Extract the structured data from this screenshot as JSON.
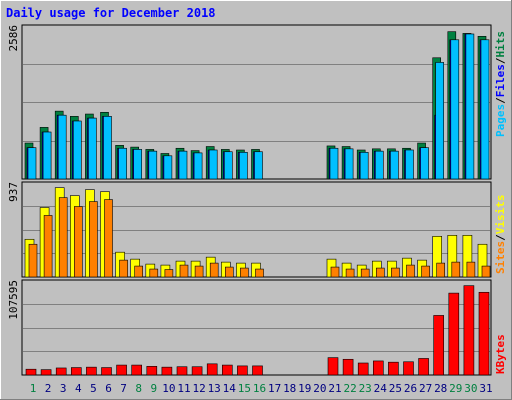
{
  "chart_data": [
    {
      "type": "bar",
      "title": "Daily usage for December 2018",
      "ylabel": "Pages / Files / Hits",
      "ymax_label": "2586",
      "ylim": [
        0,
        2586
      ],
      "categories": [
        "1",
        "2",
        "3",
        "4",
        "5",
        "6",
        "7",
        "8",
        "9",
        "10",
        "11",
        "12",
        "13",
        "14",
        "15",
        "16",
        "17",
        "18",
        "19",
        "20",
        "21",
        "22",
        "23",
        "24",
        "25",
        "26",
        "27",
        "28",
        "29",
        "30",
        "31"
      ],
      "series": [
        {
          "name": "Hits",
          "color": "#008040",
          "values": [
            620,
            890,
            1170,
            1080,
            1120,
            1150,
            580,
            550,
            510,
            440,
            530,
            490,
            560,
            510,
            500,
            510,
            0,
            0,
            0,
            0,
            570,
            560,
            500,
            520,
            520,
            530,
            620,
            2090,
            2540,
            2510,
            2460
          ]
        },
        {
          "name": "Files",
          "color": "#0000ff",
          "values": [
            540,
            810,
            1100,
            1000,
            1050,
            1080,
            530,
            510,
            480,
            400,
            480,
            450,
            500,
            470,
            460,
            470,
            0,
            0,
            0,
            0,
            530,
            520,
            460,
            480,
            480,
            500,
            540,
            1100,
            2400,
            2500,
            2400
          ]
        },
        {
          "name": "Pages",
          "color": "#00c0ff",
          "values": [
            540,
            810,
            1100,
            1000,
            1050,
            1080,
            530,
            510,
            480,
            400,
            480,
            450,
            500,
            470,
            460,
            470,
            0,
            0,
            0,
            0,
            530,
            520,
            460,
            480,
            480,
            500,
            540,
            2010,
            2400,
            2500,
            2400
          ]
        }
      ]
    },
    {
      "type": "bar",
      "ylabel": "Sites / Visits",
      "ymax_label": "937",
      "ylim": [
        0,
        937
      ],
      "categories": [
        "1",
        "2",
        "3",
        "4",
        "5",
        "6",
        "7",
        "8",
        "9",
        "10",
        "11",
        "12",
        "13",
        "14",
        "15",
        "16",
        "17",
        "18",
        "19",
        "20",
        "21",
        "22",
        "23",
        "24",
        "25",
        "26",
        "27",
        "28",
        "29",
        "30",
        "31"
      ],
      "series": [
        {
          "name": "Visits",
          "color": "#ffff00",
          "values": [
            380,
            700,
            900,
            820,
            880,
            860,
            250,
            180,
            130,
            120,
            160,
            160,
            200,
            150,
            140,
            140,
            0,
            0,
            0,
            0,
            180,
            140,
            120,
            160,
            160,
            190,
            170,
            410,
            420,
            420,
            330
          ]
        },
        {
          "name": "Sites",
          "color": "#ff8000",
          "values": [
            330,
            620,
            800,
            710,
            760,
            780,
            170,
            110,
            80,
            75,
            120,
            110,
            140,
            100,
            90,
            80,
            0,
            0,
            0,
            0,
            100,
            80,
            80,
            90,
            90,
            120,
            110,
            140,
            150,
            150,
            110
          ]
        }
      ]
    },
    {
      "type": "bar",
      "ylabel": "KBytes",
      "ymax_label": "107595",
      "ylim": [
        0,
        107595
      ],
      "categories": [
        "1",
        "2",
        "3",
        "4",
        "5",
        "6",
        "7",
        "8",
        "9",
        "10",
        "11",
        "12",
        "13",
        "14",
        "15",
        "16",
        "17",
        "18",
        "19",
        "20",
        "21",
        "22",
        "23",
        "24",
        "25",
        "26",
        "27",
        "28",
        "29",
        "30",
        "31"
      ],
      "series": [
        {
          "name": "KBytes",
          "color": "#ff0000",
          "values": [
            7000,
            6500,
            8500,
            9000,
            9500,
            9000,
            12000,
            12000,
            10500,
            9500,
            10000,
            10000,
            13500,
            12000,
            11000,
            11000,
            0,
            0,
            0,
            0,
            21000,
            19000,
            14500,
            17000,
            15500,
            16000,
            20000,
            72000,
            99000,
            108000,
            100000
          ]
        }
      ]
    }
  ],
  "day_label_colors": [
    "#008040",
    "#000080",
    "#000080",
    "#000080",
    "#000080",
    "#000080",
    "#000080",
    "#008040",
    "#008040",
    "#000080",
    "#000080",
    "#000080",
    "#000080",
    "#000080",
    "#008040",
    "#008040",
    "#000080",
    "#000080",
    "#000080",
    "#000080",
    "#000080",
    "#008040",
    "#008040",
    "#000080",
    "#000080",
    "#000080",
    "#000080",
    "#000080",
    "#008040",
    "#008040",
    "#000080"
  ]
}
